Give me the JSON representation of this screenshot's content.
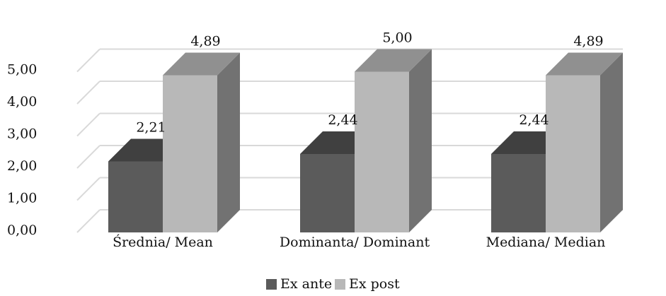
{
  "chart_data": {
    "type": "bar",
    "style": "3d-clustered-column",
    "categories": [
      "Średnia/ Mean",
      "Dominanta/ Dominant",
      "Mediana/ Median"
    ],
    "series": [
      {
        "name": "Ex ante",
        "values": [
          2.21,
          2.44,
          2.44
        ],
        "labels": [
          "2,21",
          "2,44",
          "2,44"
        ],
        "color": "#5b5b5b"
      },
      {
        "name": "Ex post",
        "values": [
          4.89,
          5.0,
          4.89
        ],
        "labels": [
          "4,89",
          "5,00",
          "4,89"
        ],
        "color": "#b8b8b8"
      }
    ],
    "yticks": [
      {
        "value": 0,
        "label": "0,00"
      },
      {
        "value": 1,
        "label": "1,00"
      },
      {
        "value": 2,
        "label": "2,00"
      },
      {
        "value": 3,
        "label": "3,00"
      },
      {
        "value": 4,
        "label": "4,00"
      },
      {
        "value": 5,
        "label": "5,00"
      }
    ],
    "ylim": [
      0,
      5.5
    ],
    "grid": true,
    "legend_position": "bottom",
    "title": "",
    "xlabel": "",
    "ylabel": ""
  }
}
